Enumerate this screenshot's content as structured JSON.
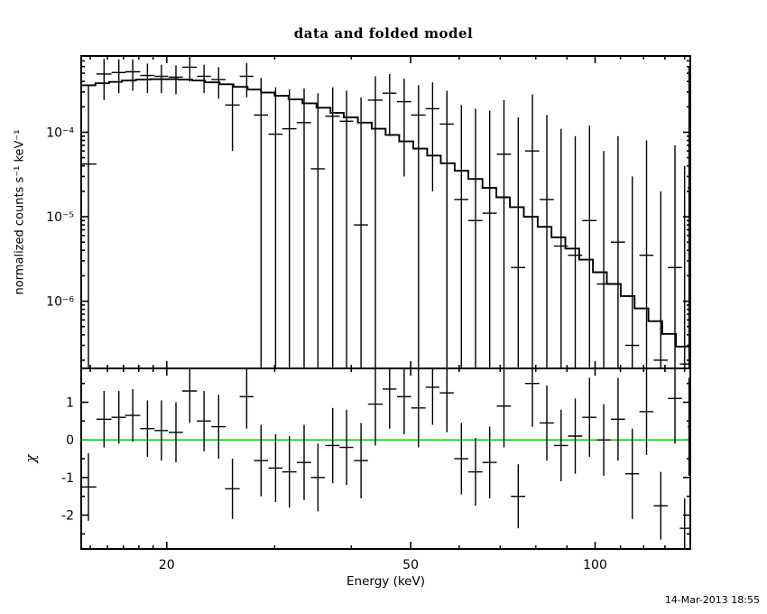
{
  "chart_data": {
    "type": "line",
    "title": "data and folded model",
    "xlabel": "Energy (keV)",
    "timestamp": "14-Mar-2013 18:55",
    "x_axis": {
      "scale": "log",
      "min": 14.5,
      "max": 143,
      "major_ticks": [
        20,
        50,
        100
      ],
      "minor_ticks": [
        15,
        16,
        17,
        18,
        19,
        30,
        40,
        60,
        70,
        80,
        90,
        110,
        120,
        130,
        140
      ]
    },
    "main_panel": {
      "ylabel": "normalized counts s⁻¹ keV⁻¹",
      "y_scale": "log",
      "y_min": 1.6e-07,
      "y_max": 0.0008,
      "y_major_ticks": [
        {
          "value": 0.0001,
          "label": "10⁻⁴"
        },
        {
          "value": 1e-05,
          "label": "10⁻⁵"
        },
        {
          "value": 1e-06,
          "label": "10⁻⁶"
        }
      ],
      "model": {
        "energy": [
          14.5,
          15.3,
          16.1,
          16.9,
          17.8,
          18.8,
          19.8,
          20.9,
          22.0,
          23.1,
          24.4,
          25.7,
          27.1,
          28.5,
          30.0,
          31.6,
          33.3,
          35.1,
          37.0,
          38.9,
          41.0,
          43.2,
          45.5,
          47.9,
          50.5,
          53.2,
          56.0,
          59.0,
          62.1,
          65.5,
          69.0,
          72.6,
          76.5,
          80.6,
          84.9,
          89.4,
          94.2,
          99.2,
          104.5,
          110.1,
          116.0,
          122.2,
          128.7,
          135.5,
          142.8
        ],
        "value": [
          0.00036,
          0.00038,
          0.000395,
          0.00041,
          0.00042,
          0.000425,
          0.000425,
          0.00042,
          0.00041,
          0.00039,
          0.00037,
          0.000345,
          0.00032,
          0.000295,
          0.00027,
          0.000245,
          0.00022,
          0.000195,
          0.00017,
          0.00015,
          0.00013,
          0.00011,
          9.3e-05,
          7.8e-05,
          6.4e-05,
          5.3e-05,
          4.3e-05,
          3.5e-05,
          2.8e-05,
          2.2e-05,
          1.7e-05,
          1.3e-05,
          1e-05,
          7.6e-06,
          5.7e-06,
          4.2e-06,
          3.1e-06,
          2.2e-06,
          1.6e-06,
          1.15e-06,
          8.2e-07,
          5.8e-07,
          4.1e-07,
          2.9e-07,
          2e-07
        ]
      }
    },
    "residual_panel": {
      "ylabel": "χ",
      "y_scale": "linear",
      "y_min": -2.9,
      "y_max": 1.9,
      "y_major_ticks": [
        {
          "value": 1,
          "label": "1"
        },
        {
          "value": 0,
          "label": "0"
        },
        {
          "value": -1,
          "label": "-1"
        },
        {
          "value": -2,
          "label": "-2"
        }
      ],
      "y_minor_ticks": [
        1.5,
        0.5,
        -0.5,
        -1.5,
        -2.5
      ],
      "zero_line_value": 0,
      "zero_line_color": "#00cc00"
    },
    "bins": [
      {
        "e": 14.9,
        "ew": 0.45,
        "y": 4.2e-05,
        "ylo": 1e-07,
        "yhi": 0.00036,
        "chi": -1.25,
        "err": 0.9
      },
      {
        "e": 15.8,
        "ew": 0.45,
        "y": 0.00049,
        "ylo": 0.00024,
        "yhi": 0.00074,
        "chi": 0.55,
        "err": 0.75
      },
      {
        "e": 16.7,
        "ew": 0.45,
        "y": 0.00051,
        "ylo": 0.00029,
        "yhi": 0.00073,
        "chi": 0.6,
        "err": 0.7
      },
      {
        "e": 17.6,
        "ew": 0.5,
        "y": 0.00052,
        "ylo": 0.00031,
        "yhi": 0.00073,
        "chi": 0.65,
        "err": 0.7
      },
      {
        "e": 18.6,
        "ew": 0.5,
        "y": 0.00047,
        "ylo": 0.00029,
        "yhi": 0.00065,
        "chi": 0.3,
        "err": 0.75
      },
      {
        "e": 19.6,
        "ew": 0.5,
        "y": 0.00046,
        "ylo": 0.00029,
        "yhi": 0.00063,
        "chi": 0.25,
        "err": 0.8
      },
      {
        "e": 20.7,
        "ew": 0.55,
        "y": 0.00045,
        "ylo": 0.00028,
        "yhi": 0.00062,
        "chi": 0.2,
        "err": 0.8
      },
      {
        "e": 21.8,
        "ew": 0.6,
        "y": 0.00059,
        "ylo": 0.0004,
        "yhi": 0.00078,
        "chi": 1.3,
        "err": 0.85
      },
      {
        "e": 23.0,
        "ew": 0.6,
        "y": 0.00046,
        "ylo": 0.00029,
        "yhi": 0.00063,
        "chi": 0.5,
        "err": 0.8
      },
      {
        "e": 24.3,
        "ew": 0.65,
        "y": 0.00042,
        "ylo": 0.00025,
        "yhi": 0.00059,
        "chi": 0.35,
        "err": 0.85
      },
      {
        "e": 25.6,
        "ew": 0.7,
        "y": 0.00021,
        "ylo": 6e-05,
        "yhi": 0.00037,
        "chi": -1.3,
        "err": 0.8
      },
      {
        "e": 27.0,
        "ew": 0.7,
        "y": 0.00046,
        "ylo": 0.00026,
        "yhi": 0.00066,
        "chi": 1.15,
        "err": 0.85
      },
      {
        "e": 28.5,
        "ew": 0.75,
        "y": 0.00016,
        "ylo": 1e-07,
        "yhi": 0.00044,
        "chi": -0.55,
        "err": 0.95
      },
      {
        "e": 30.1,
        "ew": 0.8,
        "y": 9.5e-05,
        "ylo": 1e-07,
        "yhi": 0.00034,
        "chi": -0.75,
        "err": 0.9
      },
      {
        "e": 31.7,
        "ew": 0.85,
        "y": 0.00011,
        "ylo": 1e-07,
        "yhi": 0.00032,
        "chi": -0.85,
        "err": 0.95
      },
      {
        "e": 33.5,
        "ew": 0.9,
        "y": 0.00013,
        "ylo": 1e-07,
        "yhi": 0.00033,
        "chi": -0.6,
        "err": 1.0
      },
      {
        "e": 35.3,
        "ew": 0.95,
        "y": 3.7e-05,
        "ylo": 1e-07,
        "yhi": 0.00029,
        "chi": -1.0,
        "err": 0.9
      },
      {
        "e": 37.3,
        "ew": 1.0,
        "y": 0.000155,
        "ylo": 1e-07,
        "yhi": 0.00034,
        "chi": -0.15,
        "err": 1.0
      },
      {
        "e": 39.3,
        "ew": 1.0,
        "y": 0.000135,
        "ylo": 1e-07,
        "yhi": 0.00031,
        "chi": -0.2,
        "err": 1.0
      },
      {
        "e": 41.5,
        "ew": 1.1,
        "y": 8e-06,
        "ylo": 1e-07,
        "yhi": 0.00026,
        "chi": -0.55,
        "err": 1.0
      },
      {
        "e": 43.8,
        "ew": 1.2,
        "y": 0.00024,
        "ylo": 1e-07,
        "yhi": 0.00046,
        "chi": 0.95,
        "err": 1.1
      },
      {
        "e": 46.2,
        "ew": 1.2,
        "y": 0.00029,
        "ylo": 9e-05,
        "yhi": 0.00049,
        "chi": 1.35,
        "err": 1.05
      },
      {
        "e": 48.8,
        "ew": 1.3,
        "y": 0.00023,
        "ylo": 3e-05,
        "yhi": 0.00043,
        "chi": 1.15,
        "err": 1.0
      },
      {
        "e": 51.5,
        "ew": 1.4,
        "y": 0.00016,
        "ylo": 1e-07,
        "yhi": 0.00036,
        "chi": 0.85,
        "err": 1.05
      },
      {
        "e": 54.3,
        "ew": 1.4,
        "y": 0.00019,
        "ylo": 2e-05,
        "yhi": 0.00039,
        "chi": 1.4,
        "err": 1.0
      },
      {
        "e": 57.3,
        "ew": 1.5,
        "y": 0.000125,
        "ylo": 1e-07,
        "yhi": 0.00031,
        "chi": 1.25,
        "err": 1.05
      },
      {
        "e": 60.5,
        "ew": 1.6,
        "y": 1.6e-05,
        "ylo": 1e-07,
        "yhi": 0.00021,
        "chi": -0.5,
        "err": 0.95
      },
      {
        "e": 63.8,
        "ew": 1.7,
        "y": 9e-06,
        "ylo": 1e-07,
        "yhi": 0.00019,
        "chi": -0.85,
        "err": 0.9
      },
      {
        "e": 67.3,
        "ew": 1.8,
        "y": 1.1e-05,
        "ylo": 1e-07,
        "yhi": 0.00018,
        "chi": -0.6,
        "err": 0.95
      },
      {
        "e": 71.0,
        "ew": 1.9,
        "y": 5.5e-05,
        "ylo": 1e-07,
        "yhi": 0.00024,
        "chi": 0.9,
        "err": 1.1
      },
      {
        "e": 74.9,
        "ew": 2.0,
        "y": 2.5e-06,
        "ylo": 1e-07,
        "yhi": 0.00015,
        "chi": -1.5,
        "err": 0.85
      },
      {
        "e": 79.0,
        "ew": 2.1,
        "y": 6e-05,
        "ylo": 1e-07,
        "yhi": 0.00028,
        "chi": 1.5,
        "err": 1.15
      },
      {
        "e": 83.4,
        "ew": 2.2,
        "y": 1.6e-05,
        "ylo": 1e-07,
        "yhi": 0.00016,
        "chi": 0.45,
        "err": 1.0
      },
      {
        "e": 88.0,
        "ew": 2.3,
        "y": 4.5e-06,
        "ylo": 1e-07,
        "yhi": 0.00011,
        "chi": -0.15,
        "err": 0.95
      },
      {
        "e": 92.8,
        "ew": 2.5,
        "y": 3.5e-06,
        "ylo": 1e-07,
        "yhi": 9e-05,
        "chi": 0.1,
        "err": 1.0
      },
      {
        "e": 97.9,
        "ew": 2.6,
        "y": 9e-06,
        "ylo": 1e-07,
        "yhi": 0.00012,
        "chi": 0.6,
        "err": 1.05
      },
      {
        "e": 103.3,
        "ew": 2.7,
        "y": 1.6e-06,
        "ylo": 1e-07,
        "yhi": 6e-05,
        "chi": 0.0,
        "err": 0.95
      },
      {
        "e": 109.0,
        "ew": 2.9,
        "y": 5e-06,
        "ylo": 1e-07,
        "yhi": 9e-05,
        "chi": 0.55,
        "err": 1.1
      },
      {
        "e": 115.0,
        "ew": 3.0,
        "y": 3e-07,
        "ylo": 1e-07,
        "yhi": 3e-05,
        "chi": -0.9,
        "err": 1.2
      },
      {
        "e": 121.3,
        "ew": 3.2,
        "y": 3.5e-06,
        "ylo": 1e-07,
        "yhi": 8e-05,
        "chi": 0.75,
        "err": 1.15
      },
      {
        "e": 128.0,
        "ew": 3.4,
        "y": 2e-07,
        "ylo": 1e-07,
        "yhi": 2e-05,
        "chi": -1.75,
        "err": 0.9
      },
      {
        "e": 135.0,
        "ew": 3.6,
        "y": 2.5e-06,
        "ylo": 1e-07,
        "yhi": 7e-05,
        "chi": 1.1,
        "err": 1.2
      },
      {
        "e": 140.0,
        "ew": 2.5,
        "y": 1.8e-07,
        "ylo": 1e-07,
        "yhi": 4e-05,
        "chi": -2.35,
        "err": 0.8
      },
      {
        "e": 142.3,
        "ew": 0.7,
        "y": 2.2e-05,
        "ylo": 1e-07,
        "yhi": 0.0006,
        "chi": 0.35,
        "err": 1.3
      }
    ]
  }
}
